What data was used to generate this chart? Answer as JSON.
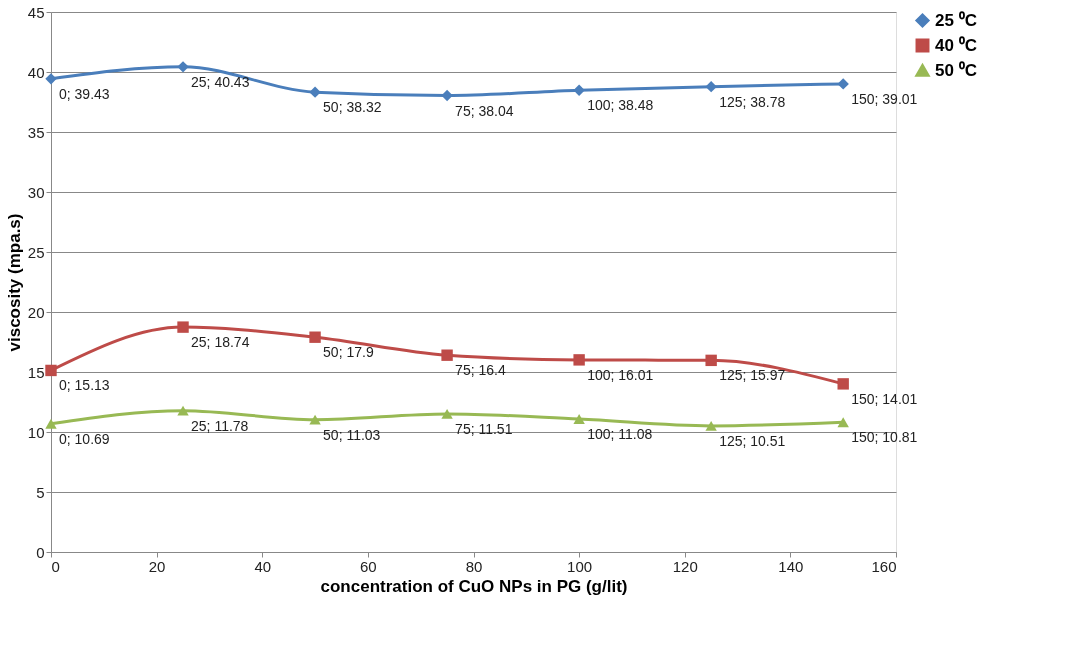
{
  "chart_data": {
    "type": "line",
    "xlabel": "concentration of CuO NPs in PG (g/lit)",
    "ylabel": "viscosity (mpa.s)",
    "x": [
      0,
      25,
      50,
      75,
      100,
      125,
      150
    ],
    "xlim": [
      0,
      160
    ],
    "xticks": [
      0,
      20,
      40,
      60,
      80,
      100,
      120,
      140,
      160
    ],
    "ylim": [
      0,
      45
    ],
    "yticks": [
      0,
      5,
      10,
      15,
      20,
      25,
      30,
      35,
      40,
      45
    ],
    "grid": "y",
    "legend": "right",
    "series": [
      {
        "name": "25 ⁰C",
        "color": "#4a7ebb",
        "marker": "diamond",
        "values": [
          39.43,
          40.43,
          38.32,
          38.04,
          38.48,
          38.78,
          39.01
        ],
        "value_labels": [
          "0; 39.43",
          "25; 40.43",
          "50; 38.32",
          "75; 38.04",
          "100; 38.48",
          "125; 38.78",
          "150; 39.01"
        ]
      },
      {
        "name": "40 ⁰C",
        "color": "#be4b48",
        "marker": "square",
        "values": [
          15.13,
          18.74,
          17.9,
          16.4,
          16.01,
          15.97,
          14.01
        ],
        "value_labels": [
          "0; 15.13",
          "25; 18.74",
          "50; 17.9",
          "75; 16.4",
          "100; 16.01",
          "125; 15.97",
          "150; 14.01"
        ]
      },
      {
        "name": "50 ⁰C",
        "color": "#98b954",
        "marker": "triangle",
        "values": [
          10.69,
          11.78,
          11.03,
          11.51,
          11.08,
          10.51,
          10.81
        ],
        "value_labels": [
          "0; 10.69",
          "25; 11.78",
          "50; 11.03",
          "75; 11.51",
          "100; 11.08",
          "125; 10.51",
          "150; 10.81"
        ]
      }
    ]
  }
}
